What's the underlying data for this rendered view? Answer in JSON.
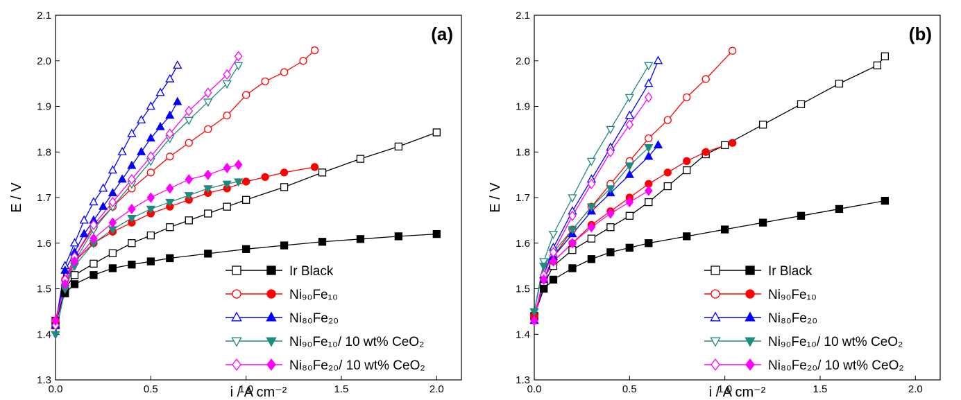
{
  "chart_data": [
    {
      "type": "line",
      "panel_label": "(a)",
      "xlabel": "i / A cm⁻²",
      "ylabel": "E / V",
      "xlim": [
        0,
        2.13
      ],
      "ylim": [
        1.3,
        2.1
      ],
      "xticks": [
        {
          "value": 0,
          "label": "0.0"
        },
        0.5,
        {
          "value": 1,
          "label": "1.0"
        },
        1.5,
        {
          "value": 2,
          "label": "2.0"
        }
      ],
      "yticks": [
        1.3,
        1.4,
        1.5,
        1.6,
        1.7,
        1.8,
        1.9,
        {
          "value": 2,
          "label": "2.0"
        },
        2.1
      ],
      "legend": "lower right",
      "series": [
        {
          "name": "Ir Black",
          "color": "#000000",
          "marker": "square",
          "curves": [
            {
              "fill": "open",
              "x": [
                0,
                0.05,
                0.1,
                0.2,
                0.3,
                0.4,
                0.5,
                0.6,
                0.7,
                0.8,
                0.9,
                1.0,
                1.2,
                1.4,
                1.6,
                1.8,
                2.0
              ],
              "values": [
                1.42,
                1.5,
                1.53,
                1.555,
                1.578,
                1.6,
                1.617,
                1.635,
                1.65,
                1.665,
                1.68,
                1.695,
                1.723,
                1.755,
                1.785,
                1.812,
                1.843
              ]
            },
            {
              "fill": "filled",
              "x": [
                0,
                0.05,
                0.1,
                0.2,
                0.3,
                0.4,
                0.5,
                0.6,
                0.8,
                1.0,
                1.2,
                1.4,
                1.6,
                1.8,
                2.0
              ],
              "values": [
                1.43,
                1.49,
                1.51,
                1.53,
                1.545,
                1.553,
                1.56,
                1.567,
                1.577,
                1.587,
                1.595,
                1.603,
                1.609,
                1.615,
                1.62
              ]
            }
          ]
        },
        {
          "name": "Ni₉₀Fe₁₀",
          "color": "#ff0000",
          "marker": "circle",
          "curves": [
            {
              "fill": "open",
              "x": [
                0,
                0.05,
                0.1,
                0.2,
                0.3,
                0.4,
                0.5,
                0.6,
                0.7,
                0.8,
                0.9,
                1.0,
                1.1,
                1.2,
                1.3,
                1.36
              ],
              "values": [
                1.43,
                1.52,
                1.57,
                1.635,
                1.68,
                1.72,
                1.755,
                1.79,
                1.82,
                1.85,
                1.88,
                1.925,
                1.955,
                1.975,
                2.0,
                2.023
              ]
            },
            {
              "fill": "filled",
              "x": [
                0,
                0.05,
                0.1,
                0.2,
                0.3,
                0.4,
                0.5,
                0.6,
                0.7,
                0.8,
                0.9,
                1.0,
                1.1,
                1.2,
                1.36
              ],
              "values": [
                1.43,
                1.52,
                1.56,
                1.6,
                1.625,
                1.645,
                1.665,
                1.68,
                1.695,
                1.71,
                1.72,
                1.735,
                1.745,
                1.755,
                1.767
              ]
            }
          ]
        },
        {
          "name": "Ni₈₀Fe₂₀",
          "color": "#0000ff",
          "marker": "triangle-up",
          "curves": [
            {
              "fill": "open",
              "x": [
                0,
                0.05,
                0.1,
                0.15,
                0.2,
                0.25,
                0.3,
                0.35,
                0.4,
                0.45,
                0.5,
                0.55,
                0.6,
                0.64
              ],
              "values": [
                1.42,
                1.55,
                1.6,
                1.65,
                1.69,
                1.72,
                1.76,
                1.8,
                1.84,
                1.87,
                1.9,
                1.93,
                1.96,
                1.99
              ]
            },
            {
              "fill": "filled",
              "x": [
                0,
                0.05,
                0.1,
                0.15,
                0.2,
                0.25,
                0.3,
                0.35,
                0.4,
                0.45,
                0.5,
                0.55,
                0.6,
                0.64
              ],
              "values": [
                1.42,
                1.54,
                1.58,
                1.62,
                1.65,
                1.68,
                1.71,
                1.74,
                1.77,
                1.8,
                1.83,
                1.855,
                1.88,
                1.91
              ]
            }
          ]
        },
        {
          "name": "Ni₉₀Fe₁₀/ 10 wt% CeO₂",
          "color": "#1f8a80",
          "marker": "triangle-down",
          "curves": [
            {
              "fill": "open",
              "x": [
                0,
                0.05,
                0.1,
                0.2,
                0.3,
                0.4,
                0.5,
                0.6,
                0.7,
                0.8,
                0.9,
                0.96
              ],
              "values": [
                1.4,
                1.5,
                1.56,
                1.63,
                1.68,
                1.73,
                1.78,
                1.83,
                1.87,
                1.91,
                1.95,
                1.99
              ]
            },
            {
              "fill": "filled",
              "x": [
                0,
                0.05,
                0.1,
                0.2,
                0.3,
                0.4,
                0.5,
                0.6,
                0.7,
                0.8,
                0.9,
                0.96
              ],
              "values": [
                1.4,
                1.5,
                1.55,
                1.6,
                1.63,
                1.655,
                1.675,
                1.69,
                1.705,
                1.72,
                1.73,
                1.735
              ]
            }
          ]
        },
        {
          "name": "Ni₈₀Fe₂₀/ 10 wt% CeO₂",
          "color": "#ff00ff",
          "marker": "diamond",
          "curves": [
            {
              "fill": "open",
              "x": [
                0,
                0.05,
                0.1,
                0.2,
                0.3,
                0.4,
                0.5,
                0.6,
                0.7,
                0.8,
                0.9,
                0.96
              ],
              "values": [
                1.42,
                1.52,
                1.57,
                1.64,
                1.69,
                1.74,
                1.79,
                1.84,
                1.89,
                1.93,
                1.97,
                2.01
              ]
            },
            {
              "fill": "filled",
              "x": [
                0,
                0.05,
                0.1,
                0.2,
                0.3,
                0.4,
                0.5,
                0.6,
                0.7,
                0.8,
                0.9,
                0.96
              ],
              "values": [
                1.43,
                1.51,
                1.56,
                1.61,
                1.645,
                1.675,
                1.7,
                1.72,
                1.74,
                1.75,
                1.765,
                1.772
              ]
            }
          ]
        }
      ]
    },
    {
      "type": "line",
      "panel_label": "(b)",
      "xlabel": "i / A cm⁻²",
      "ylabel": "E / V",
      "xlim": [
        0,
        2.13
      ],
      "ylim": [
        1.3,
        2.1
      ],
      "xticks": [
        {
          "value": 0,
          "label": "0.0"
        },
        0.5,
        {
          "value": 1,
          "label": "1.0"
        },
        1.5,
        {
          "value": 2,
          "label": "2.0"
        }
      ],
      "yticks": [
        1.3,
        1.4,
        1.5,
        1.6,
        1.7,
        1.8,
        1.9,
        {
          "value": 2,
          "label": "2.0"
        },
        2.1
      ],
      "legend": "lower right",
      "series": [
        {
          "name": "Ir Black",
          "color": "#000000",
          "marker": "square",
          "curves": [
            {
              "fill": "open",
              "x": [
                0,
                0.05,
                0.1,
                0.2,
                0.3,
                0.4,
                0.5,
                0.6,
                0.7,
                0.8,
                0.9,
                1.0,
                1.2,
                1.4,
                1.6,
                1.8,
                1.84
              ],
              "values": [
                1.44,
                1.51,
                1.55,
                1.585,
                1.61,
                1.635,
                1.66,
                1.69,
                1.725,
                1.76,
                1.795,
                1.815,
                1.86,
                1.905,
                1.95,
                1.99,
                2.01
              ]
            },
            {
              "fill": "filled",
              "x": [
                0,
                0.05,
                0.1,
                0.2,
                0.3,
                0.4,
                0.5,
                0.6,
                0.8,
                1.0,
                1.2,
                1.4,
                1.6,
                1.84
              ],
              "values": [
                1.44,
                1.5,
                1.52,
                1.545,
                1.565,
                1.58,
                1.59,
                1.6,
                1.615,
                1.63,
                1.645,
                1.66,
                1.675,
                1.693
              ]
            }
          ]
        },
        {
          "name": "Ni₉₀Fe₁₀",
          "color": "#ff0000",
          "marker": "circle",
          "curves": [
            {
              "fill": "open",
              "x": [
                0,
                0.05,
                0.1,
                0.2,
                0.3,
                0.4,
                0.5,
                0.6,
                0.7,
                0.8,
                0.9,
                1.04
              ],
              "values": [
                1.44,
                1.52,
                1.57,
                1.63,
                1.68,
                1.73,
                1.78,
                1.83,
                1.87,
                1.92,
                1.96,
                2.022
              ]
            },
            {
              "fill": "filled",
              "x": [
                0,
                0.05,
                0.1,
                0.2,
                0.3,
                0.4,
                0.5,
                0.6,
                0.7,
                0.8,
                0.9,
                1.04
              ],
              "values": [
                1.44,
                1.52,
                1.56,
                1.6,
                1.64,
                1.67,
                1.7,
                1.73,
                1.755,
                1.78,
                1.8,
                1.82
              ]
            }
          ]
        },
        {
          "name": "Ni₈₀Fe₂₀",
          "color": "#0000ff",
          "marker": "triangle-up",
          "curves": [
            {
              "fill": "open",
              "x": [
                0,
                0.05,
                0.1,
                0.2,
                0.3,
                0.4,
                0.5,
                0.6,
                0.65
              ],
              "values": [
                1.43,
                1.53,
                1.59,
                1.67,
                1.74,
                1.81,
                1.88,
                1.95,
                2.0
              ]
            },
            {
              "fill": "filled",
              "x": [
                0,
                0.05,
                0.1,
                0.2,
                0.3,
                0.4,
                0.5,
                0.6,
                0.65
              ],
              "values": [
                1.43,
                1.52,
                1.57,
                1.62,
                1.67,
                1.71,
                1.75,
                1.79,
                1.815
              ]
            }
          ]
        },
        {
          "name": "Ni₉₀Fe₁₀/ 10 wt% CeO₂",
          "color": "#1f8a80",
          "marker": "triangle-down",
          "curves": [
            {
              "fill": "open",
              "x": [
                0,
                0.05,
                0.1,
                0.2,
                0.3,
                0.4,
                0.5,
                0.6
              ],
              "values": [
                1.45,
                1.56,
                1.62,
                1.7,
                1.78,
                1.85,
                1.92,
                1.99
              ]
            },
            {
              "fill": "filled",
              "x": [
                0,
                0.05,
                0.1,
                0.2,
                0.3,
                0.4,
                0.5,
                0.6
              ],
              "values": [
                1.45,
                1.55,
                1.58,
                1.63,
                1.68,
                1.72,
                1.77,
                1.81
              ]
            }
          ]
        },
        {
          "name": "Ni₈₀Fe₂₀/ 10 wt% CeO₂",
          "color": "#ff00ff",
          "marker": "diamond",
          "curves": [
            {
              "fill": "open",
              "x": [
                0,
                0.05,
                0.1,
                0.2,
                0.3,
                0.4,
                0.5,
                0.6
              ],
              "values": [
                1.43,
                1.53,
                1.58,
                1.66,
                1.73,
                1.8,
                1.86,
                1.92
              ]
            },
            {
              "fill": "filled",
              "x": [
                0,
                0.05,
                0.1,
                0.2,
                0.3,
                0.4,
                0.5,
                0.6
              ],
              "values": [
                1.43,
                1.52,
                1.56,
                1.6,
                1.635,
                1.665,
                1.69,
                1.715
              ]
            }
          ]
        }
      ]
    }
  ]
}
